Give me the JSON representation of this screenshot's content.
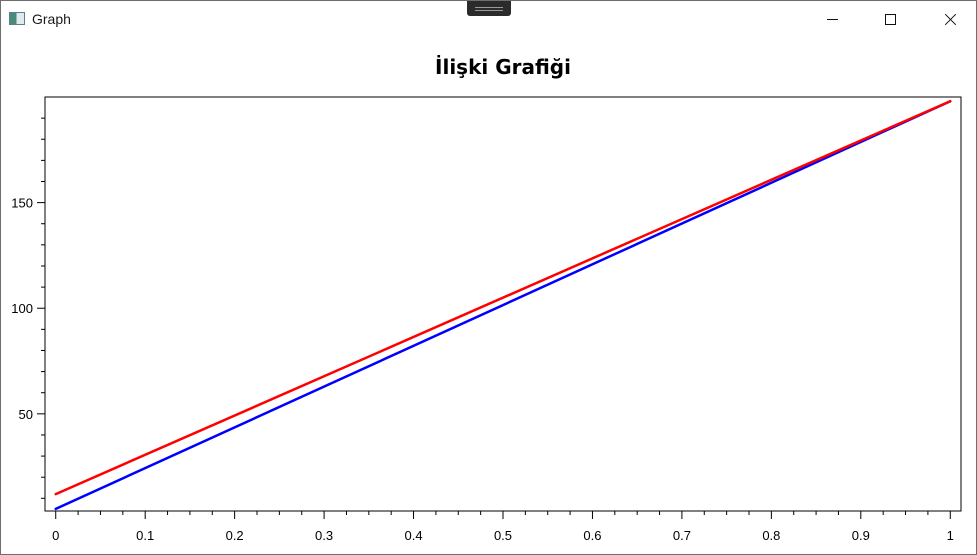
{
  "window": {
    "title": "Graph",
    "icon": "app-window-icon"
  },
  "chart_data": {
    "type": "line",
    "title": "İlişki Grafiği",
    "xlabel": "",
    "ylabel": "",
    "xlim": [
      -0.012,
      1.012
    ],
    "ylim": [
      4,
      200
    ],
    "x_ticks": [
      0,
      0.1,
      0.2,
      0.3,
      0.4,
      0.5,
      0.6,
      0.7,
      0.8,
      0.9,
      1
    ],
    "x_tick_labels": [
      "0",
      "0.1",
      "0.2",
      "0.3",
      "0.4",
      "0.5",
      "0.6",
      "0.7",
      "0.8",
      "0.9",
      "1"
    ],
    "x_minor_step": 0.025,
    "y_ticks": [
      50,
      100,
      150
    ],
    "y_tick_labels": [
      "50",
      "100",
      "150"
    ],
    "y_minor_step": 10,
    "grid": false,
    "legend": "none",
    "series": [
      {
        "color": "#ff0000",
        "x": [
          0,
          1
        ],
        "y": [
          12,
          198
        ]
      },
      {
        "color": "#0000ff",
        "x": [
          0,
          1
        ],
        "y": [
          5,
          198
        ]
      }
    ]
  }
}
